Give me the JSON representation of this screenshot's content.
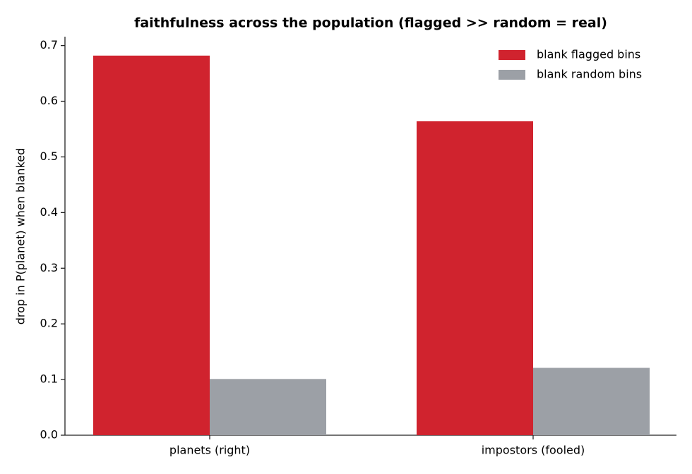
{
  "chart_data": {
    "type": "bar",
    "title": "faithfulness across the population (flagged >> random = real)",
    "y_label": "drop in P(planet) when blanked",
    "categories": [
      "planets (right)",
      "impostors (fooled)"
    ],
    "series": [
      {
        "name": "blank flagged bins",
        "color": "#d0232e",
        "values": [
          0.682,
          0.564
        ]
      },
      {
        "name": "blank random bins",
        "color": "#9ca0a6",
        "values": [
          0.101,
          0.121
        ]
      }
    ],
    "ylim": [
      0,
      0.716
    ],
    "yticks": [
      {
        "value": 0,
        "label": "0.0"
      },
      0.1,
      0.2,
      0.3,
      0.4,
      0.5,
      0.6,
      0.7
    ],
    "legend": "upper right",
    "grid": false
  }
}
